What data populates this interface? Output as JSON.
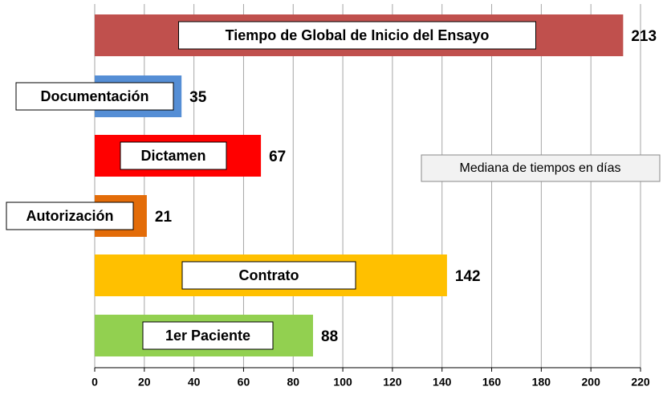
{
  "chart_data": {
    "type": "barh",
    "categories": [
      "Tiempo de Global de Inicio del Ensayo",
      "Documentación",
      "Dictamen",
      "Autorización",
      "Contrato",
      "1er Paciente"
    ],
    "values": [
      213,
      35,
      67,
      21,
      142,
      88
    ],
    "colors": [
      "#c0504d",
      "#558ed5",
      "#ff0000",
      "#e36c09",
      "#ffc000",
      "#92d050"
    ],
    "xlim": [
      0,
      220
    ],
    "xticks": [
      0,
      20,
      40,
      60,
      80,
      100,
      120,
      140,
      160,
      180,
      200,
      220
    ],
    "grid": true,
    "annotation": "Mediana de tiempos en días"
  }
}
